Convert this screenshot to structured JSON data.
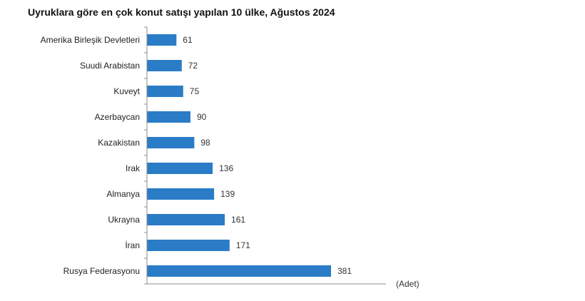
{
  "title": "Uyruklara göre en çok konut satışı yapılan 10 ülke, Ağustos 2024",
  "unit_label": "(Adet)",
  "bar_color": "#2a7cc7",
  "chart_data": {
    "type": "bar",
    "orientation": "horizontal",
    "title": "Uyruklara göre en çok konut satışı yapılan 10 ülke, Ağustos 2024",
    "xlabel": "(Adet)",
    "ylabel": "",
    "categories": [
      "Amerika Birleşik Devletleri",
      "Suudi Arabistan",
      "Kuveyt",
      "Azerbaycan",
      "Kazakistan",
      "Irak",
      "Almanya",
      "Ukrayna",
      "İran",
      "Rusya Federasyonu"
    ],
    "values": [
      61,
      72,
      75,
      90,
      98,
      136,
      139,
      161,
      171,
      381
    ],
    "xlim": [
      0,
      381
    ],
    "data_labels": true,
    "grid": false,
    "legend": "none"
  }
}
